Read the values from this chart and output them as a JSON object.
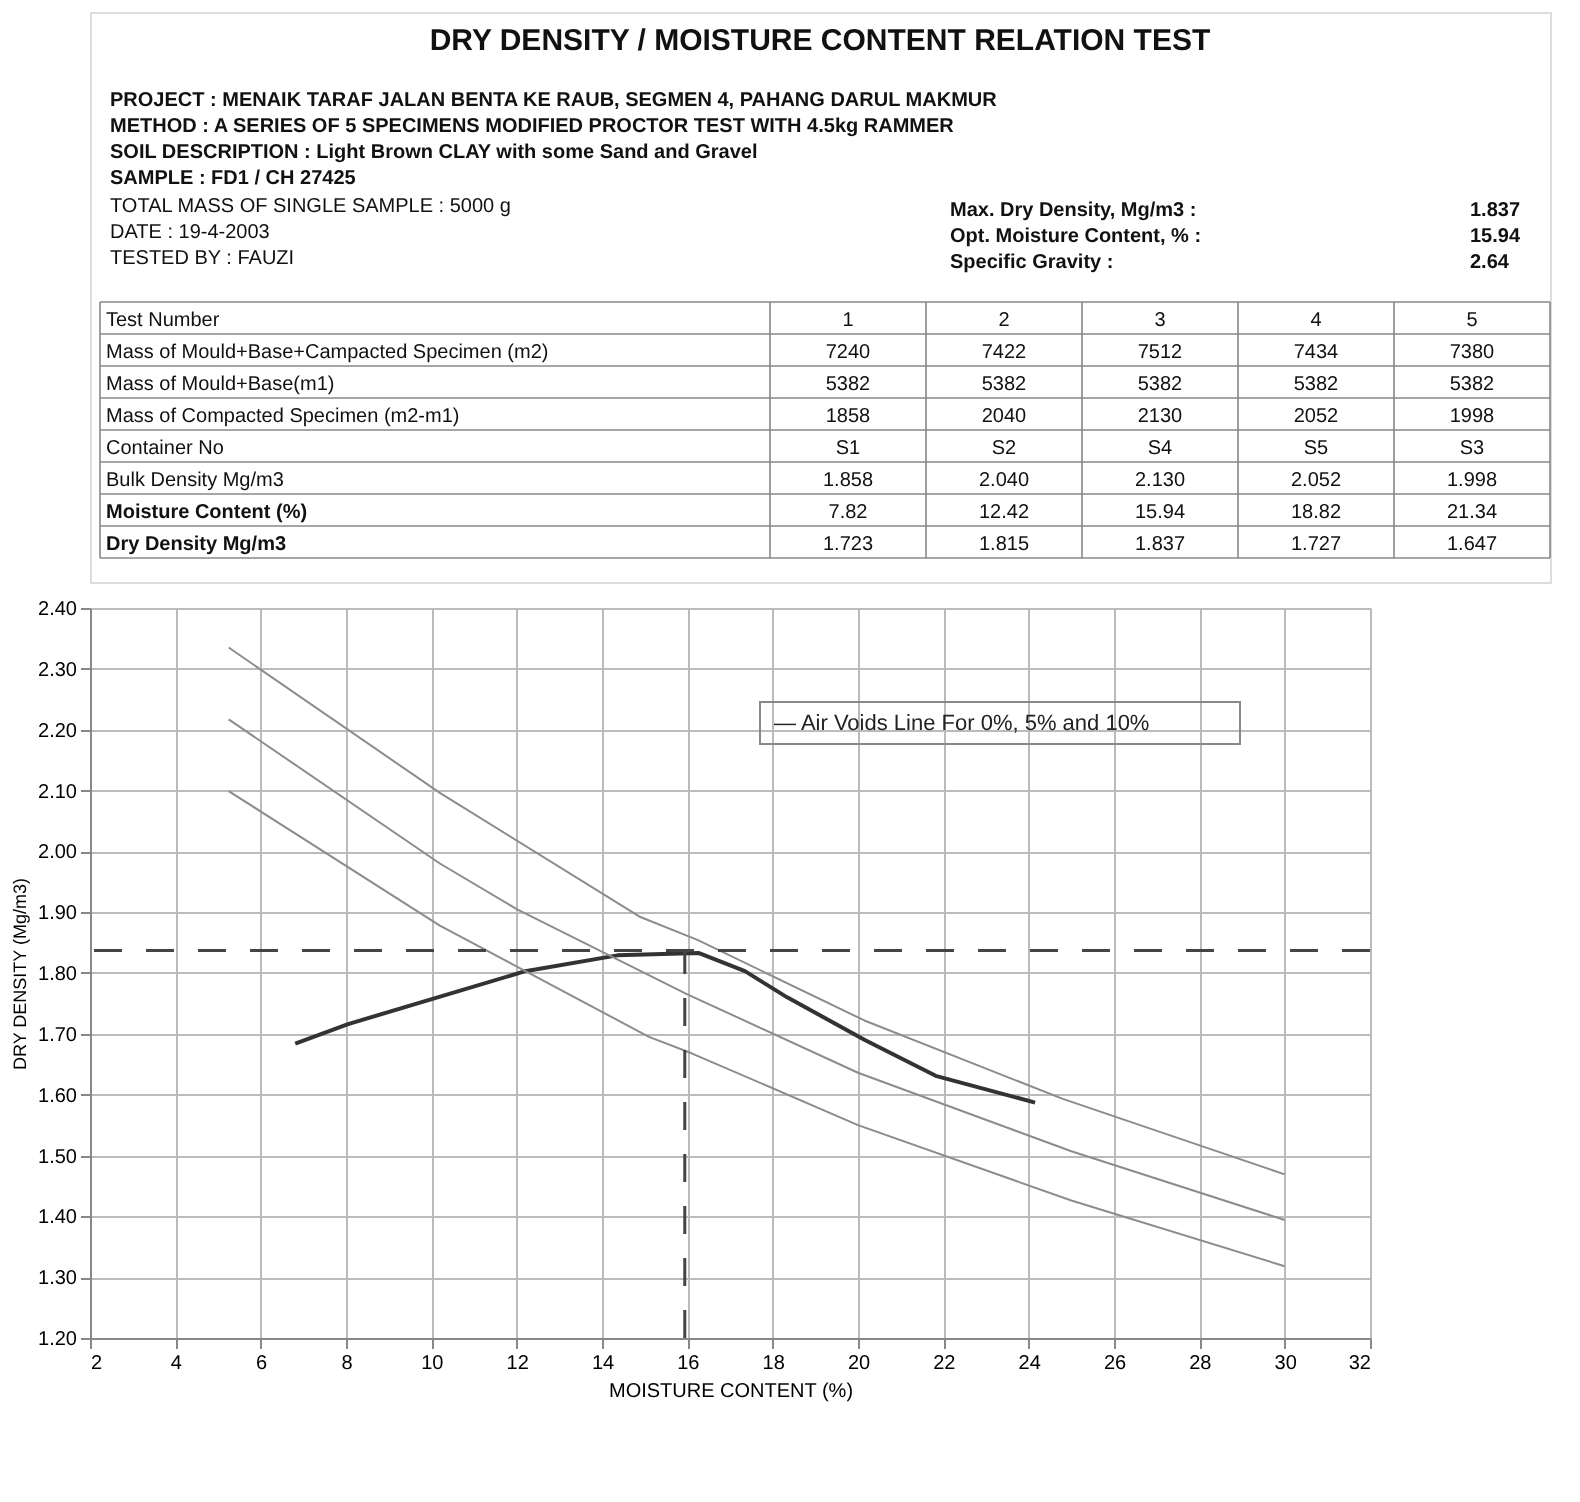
{
  "chart_data": {
    "type": "line",
    "title": "DRY DENSITY / MOISTURE CONTENT RELATION TEST",
    "xlabel": "MOISTURE CONTENT (%)",
    "ylabel": "DRY DENSITY (Mg/m3)",
    "xlim": [
      2,
      32
    ],
    "xticks": [
      2,
      4,
      6,
      8,
      10,
      12,
      14,
      16,
      18,
      20,
      22,
      24,
      26,
      28,
      30,
      32
    ],
    "ylim": [
      1.2,
      2.4
    ],
    "yticks": [
      {
        "value": 1.2,
        "label": "1.20"
      },
      {
        "value": 1.3,
        "label": "1.30"
      },
      {
        "value": 1.4,
        "label": "1.40"
      },
      {
        "value": 1.5,
        "label": "1.50"
      },
      {
        "value": 1.6,
        "label": "1.60"
      },
      {
        "value": 1.7,
        "label": "1.70"
      },
      {
        "value": 1.8,
        "label": "1.80"
      },
      {
        "value": 1.9,
        "label": "1.90"
      },
      {
        "value": 2.0,
        "label": "2.00"
      },
      {
        "value": 2.1,
        "label": "2.10"
      },
      {
        "value": 2.2,
        "label": "2.20"
      },
      {
        "value": 2.3,
        "label": "2.30"
      },
      {
        "value": 2.4,
        "label": "2.40"
      }
    ],
    "grid": true,
    "marker": "none",
    "line_style": "solid",
    "series": [
      {
        "color": "#333333",
        "x": [
          6.81,
          8.05,
          12.2,
          14.36,
          16.26,
          17.35,
          18.34,
          20.16,
          21.82,
          24.15
        ],
        "values": [
          1.684,
          1.716,
          1.803,
          1.829,
          1.833,
          1.803,
          1.76,
          1.69,
          1.631,
          1.587
        ]
      },
      {
        "color": "#8c8c8c",
        "x": [
          5.25,
          10.2,
          14.9,
          16.25,
          20.15,
          24.8,
          30
        ],
        "values": [
          2.335,
          2.096,
          1.892,
          1.854,
          1.722,
          1.593,
          1.469
        ]
      },
      {
        "color": "#8c8c8c",
        "x": [
          5.25,
          10.2,
          12,
          16,
          20,
          25,
          30
        ],
        "values": [
          2.217,
          1.98,
          1.905,
          1.765,
          1.636,
          1.507,
          1.394
        ]
      },
      {
        "color": "#8c8c8c",
        "x": [
          5.25,
          10.2,
          15.1,
          16.1,
          20,
          25,
          30
        ],
        "values": [
          2.099,
          1.878,
          1.695,
          1.668,
          1.55,
          1.426,
          1.318
        ]
      }
    ],
    "ref_lines": [
      {
        "axis": "y",
        "value": 1.837,
        "color": "#444444",
        "line_style": "dashed"
      },
      {
        "axis": "x",
        "value": 15.94,
        "color": "#444444",
        "line_style": "dashed"
      }
    ],
    "annotations": [
      "PROJECT : MENAIK TARAF JALAN BENTA KE RAUB,  SEGMEN 4, PAHANG DARUL MAKMUR",
      "METHOD :  A SERIES OF 5 SPECIMENS MODIFIED PROCTOR TEST WITH 4.5kg RAMMER",
      "SOIL DESCRIPTION :  Light Brown CLAY with some Sand and Gravel",
      "SAMPLE : FD1 / CH 27425",
      "TOTAL MASS OF SINGLE SAMPLE :  5000 g",
      "DATE : 19-4-2003",
      "TESTED BY :  FAUZI",
      "Max. Dry Density, Mg/m3 :",
      "1.837",
      "Opt. Moisture Content, % :",
      "15.94",
      "Specific Gravity :",
      "2.64",
      "Test Number",
      "1",
      "2",
      "3",
      "4",
      "5",
      "Mass of Mould+Base+Campacted Specimen (m2)",
      "7240",
      "7422",
      "7512",
      "7434",
      "7380",
      "Mass of Mould+Base(m1)",
      "5382",
      "5382",
      "5382",
      "5382",
      "5382",
      "Mass of Compacted Specimen (m2-m1)",
      "1858",
      "2040",
      "2130",
      "2052",
      "1998",
      "Container No",
      "S1",
      "S2",
      "S4",
      "S5",
      "S3",
      "Bulk Density  Mg/m3",
      "1.858",
      "2.040",
      "2.130",
      "2.052",
      "1.998",
      "Moisture Content (%)",
      "7.82",
      "12.42",
      "15.94",
      "18.82",
      "21.34",
      "Dry Density  Mg/m3",
      "1.723",
      "1.815",
      "1.837",
      "1.727",
      "1.647",
      "— Air Voids Line For 0%, 5% and 10%"
    ]
  }
}
